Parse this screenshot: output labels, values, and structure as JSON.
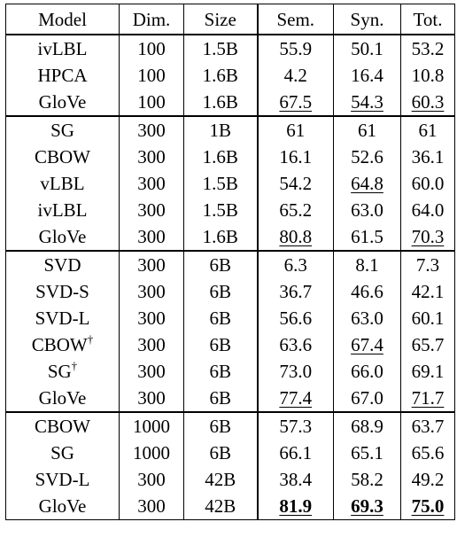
{
  "headers": [
    "Model",
    "Dim.",
    "Size",
    "Sem.",
    "Syn.",
    "Tot."
  ],
  "groups": [
    [
      {
        "model": "ivLBL",
        "dim": "100",
        "size": "1.5B",
        "sem": "55.9",
        "syn": "50.1",
        "tot": "53.2"
      },
      {
        "model": "HPCA",
        "dim": "100",
        "size": "1.6B",
        "sem": "4.2",
        "syn": "16.4",
        "tot": "10.8"
      },
      {
        "model": "GloVe",
        "dim": "100",
        "size": "1.6B",
        "sem": "67.5",
        "syn": "54.3",
        "tot": "60.3",
        "underline": [
          "sem",
          "syn",
          "tot"
        ]
      }
    ],
    [
      {
        "model": "SG",
        "dim": "300",
        "size": "1B",
        "sem": "61",
        "syn": "61",
        "tot": "61"
      },
      {
        "model": "CBOW",
        "dim": "300",
        "size": "1.6B",
        "sem": "16.1",
        "syn": "52.6",
        "tot": "36.1"
      },
      {
        "model": "vLBL",
        "dim": "300",
        "size": "1.5B",
        "sem": "54.2",
        "syn": "64.8",
        "tot": "60.0",
        "underline": [
          "syn"
        ]
      },
      {
        "model": "ivLBL",
        "dim": "300",
        "size": "1.5B",
        "sem": "65.2",
        "syn": "63.0",
        "tot": "64.0"
      },
      {
        "model": "GloVe",
        "dim": "300",
        "size": "1.6B",
        "sem": "80.8",
        "syn": "61.5",
        "tot": "70.3",
        "underline": [
          "sem",
          "tot"
        ]
      }
    ],
    [
      {
        "model": "SVD",
        "dim": "300",
        "size": "6B",
        "sem": "6.3",
        "syn": "8.1",
        "tot": "7.3"
      },
      {
        "model": "SVD-S",
        "dim": "300",
        "size": "6B",
        "sem": "36.7",
        "syn": "46.6",
        "tot": "42.1"
      },
      {
        "model": "SVD-L",
        "dim": "300",
        "size": "6B",
        "sem": "56.6",
        "syn": "63.0",
        "tot": "60.1"
      },
      {
        "model": "CBOW",
        "dagger": "†",
        "dim": "300",
        "size": "6B",
        "sem": "63.6",
        "syn": "67.4",
        "tot": "65.7",
        "underline": [
          "syn"
        ]
      },
      {
        "model": "SG",
        "dagger": "†",
        "dim": "300",
        "size": "6B",
        "sem": "73.0",
        "syn": "66.0",
        "tot": "69.1"
      },
      {
        "model": "GloVe",
        "dim": "300",
        "size": "6B",
        "sem": "77.4",
        "syn": "67.0",
        "tot": "71.7",
        "underline": [
          "sem",
          "tot"
        ]
      }
    ],
    [
      {
        "model": "CBOW",
        "dim": "1000",
        "size": "6B",
        "sem": "57.3",
        "syn": "68.9",
        "tot": "63.7"
      },
      {
        "model": "SG",
        "dim": "1000",
        "size": "6B",
        "sem": "66.1",
        "syn": "65.1",
        "tot": "65.6"
      },
      {
        "model": "SVD-L",
        "dim": "300",
        "size": "42B",
        "sem": "38.4",
        "syn": "58.2",
        "tot": "49.2"
      },
      {
        "model": "GloVe",
        "dim": "300",
        "size": "42B",
        "sem": "81.9",
        "syn": "69.3",
        "tot": "75.0",
        "bold": [
          "sem",
          "syn",
          "tot"
        ],
        "underline": [
          "sem",
          "syn",
          "tot"
        ]
      }
    ]
  ]
}
